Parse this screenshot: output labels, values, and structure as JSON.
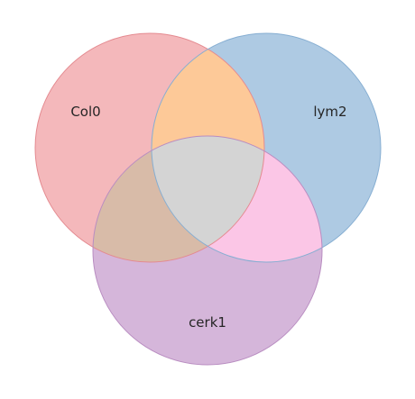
{
  "diagram": {
    "type": "venn3",
    "sets": [
      {
        "id": "A",
        "label": "Col0",
        "color": "#f4b8bb",
        "edge": "#e48a90"
      },
      {
        "id": "B",
        "label": "lym2",
        "color": "#aecae3",
        "edge": "#86aed2"
      },
      {
        "id": "C",
        "label": "cerk1",
        "color": "#d5b6da",
        "edge": "#b98dc1"
      }
    ],
    "region_colors": {
      "A_and_B": "#fdc998",
      "A_and_C": "#d8bba8",
      "B_and_C": "#fbc6e6",
      "A_and_B_and_C": "#d4d4d4"
    }
  }
}
